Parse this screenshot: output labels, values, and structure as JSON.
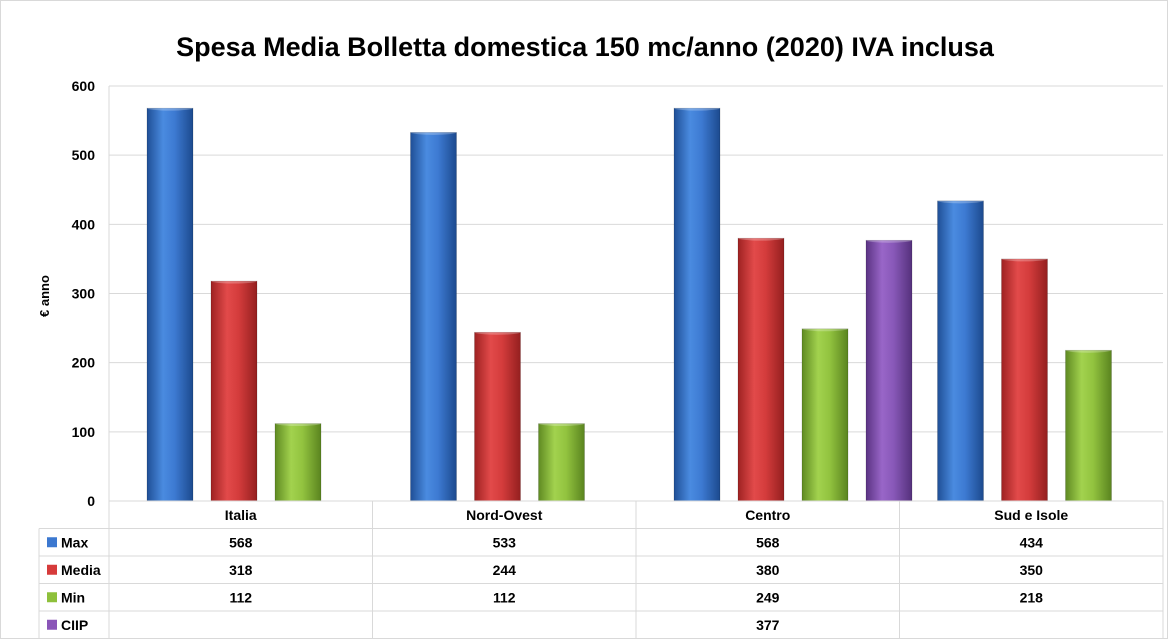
{
  "chart_data": {
    "type": "bar",
    "title": "Spesa Media Bolletta domestica 150 mc/anno (2020) IVA inclusa",
    "ylabel": "€ anno",
    "xlabel": "",
    "ylim": [
      0,
      600
    ],
    "yticks": [
      0,
      100,
      200,
      300,
      400,
      500,
      600
    ],
    "grid": true,
    "legend": "data-table",
    "categories": [
      "Italia",
      "Nord-Ovest",
      "Centro",
      "Sud e Isole"
    ],
    "series": [
      {
        "name": "Max",
        "color": "#3c78d0",
        "values": [
          568,
          533,
          568,
          434
        ],
        "labels": [
          "568",
          "533",
          "568",
          "434"
        ]
      },
      {
        "name": "Media",
        "color": "#d63b3b",
        "values": [
          318,
          244,
          380,
          350
        ],
        "labels": [
          "318",
          "244",
          "380",
          "350"
        ]
      },
      {
        "name": "Min",
        "color": "#8ec03b",
        "values": [
          112,
          112,
          249,
          218
        ],
        "labels": [
          "112",
          "112",
          "249",
          "218"
        ]
      },
      {
        "name": "CIIP",
        "color": "#8a55b8",
        "values": [
          null,
          null,
          377,
          null
        ],
        "labels": [
          "",
          "",
          "377",
          ""
        ]
      }
    ]
  }
}
